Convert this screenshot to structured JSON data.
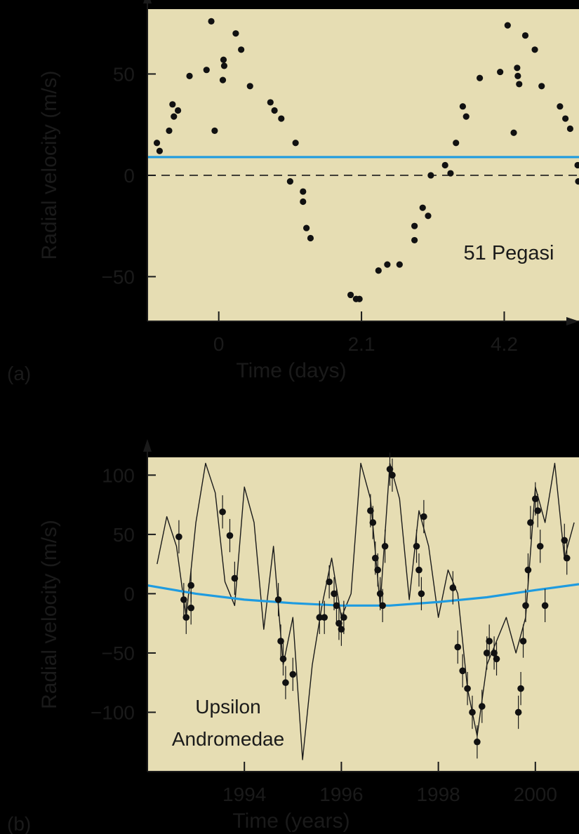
{
  "figure": {
    "colors": {
      "background": "#000000",
      "panel": "#e6ddb3",
      "axis": "#1a1a1a",
      "blue": "#1e9be0",
      "point": "#111111"
    }
  },
  "chart_data": [
    {
      "panel_label": "(a)",
      "type": "scatter",
      "xlabel": "Time (days)",
      "ylabel": "Radial velocity (m/s)",
      "annotation": "51 Pegasi",
      "x_ticks": [
        0,
        2.1,
        4.2
      ],
      "x_tick_labels": [
        "0",
        "2.1",
        "4.2"
      ],
      "y_ticks": [
        50,
        0,
        -50
      ],
      "y_tick_labels": [
        "50",
        "0",
        "−50"
      ],
      "xlim": [
        -1.05,
        5.3
      ],
      "ylim": [
        -72,
        82
      ],
      "reference_lines": [
        {
          "name": "systemic",
          "y": 9,
          "style": "solid",
          "color": "#1e9be0"
        },
        {
          "name": "zero",
          "y": 0,
          "style": "dashed",
          "color": "#1a1a1a"
        }
      ],
      "points": [
        [
          -0.91,
          16
        ],
        [
          -0.87,
          12
        ],
        [
          -0.73,
          22
        ],
        [
          -0.68,
          35
        ],
        [
          -0.66,
          29
        ],
        [
          -0.6,
          32
        ],
        [
          -0.43,
          49
        ],
        [
          -0.18,
          52
        ],
        [
          -0.06,
          22
        ],
        [
          -0.11,
          76
        ],
        [
          0.07,
          57
        ],
        [
          0.08,
          54
        ],
        [
          0.06,
          47
        ],
        [
          0.25,
          70
        ],
        [
          0.33,
          62
        ],
        [
          0.46,
          44
        ],
        [
          0.76,
          36
        ],
        [
          0.82,
          32
        ],
        [
          0.92,
          28
        ],
        [
          1.13,
          16
        ],
        [
          1.05,
          -3
        ],
        [
          1.24,
          -8
        ],
        [
          1.24,
          -13
        ],
        [
          1.29,
          -26
        ],
        [
          1.35,
          -31
        ],
        [
          1.94,
          -59
        ],
        [
          2.02,
          -61
        ],
        [
          2.07,
          -61
        ],
        [
          2.35,
          -47
        ],
        [
          2.48,
          -44
        ],
        [
          2.66,
          -44
        ],
        [
          2.88,
          -25
        ],
        [
          2.88,
          -32
        ],
        [
          3.0,
          -16
        ],
        [
          3.08,
          -20
        ],
        [
          3.12,
          0
        ],
        [
          3.33,
          5
        ],
        [
          3.41,
          1
        ],
        [
          3.49,
          16
        ],
        [
          3.59,
          34
        ],
        [
          3.64,
          29
        ],
        [
          3.84,
          48
        ],
        [
          4.14,
          51
        ],
        [
          4.25,
          74
        ],
        [
          4.34,
          21
        ],
        [
          4.39,
          53
        ],
        [
          4.42,
          45
        ],
        [
          4.4,
          49
        ],
        [
          4.51,
          69
        ],
        [
          4.65,
          62
        ],
        [
          4.75,
          44
        ],
        [
          5.02,
          34
        ],
        [
          5.1,
          28
        ],
        [
          5.17,
          23
        ],
        [
          5.28,
          5
        ],
        [
          5.29,
          -3
        ]
      ]
    },
    {
      "panel_label": "(b)",
      "type": "line",
      "xlabel": "Time (years)",
      "ylabel": "Radial velocity (m/s)",
      "annotation": [
        "Upsilon",
        "Andromedae"
      ],
      "x_ticks": [
        1994,
        1996,
        1998,
        2000
      ],
      "x_tick_labels": [
        "1994",
        "1996",
        "1998",
        "2000"
      ],
      "y_ticks": [
        100,
        50,
        0,
        -50,
        -100
      ],
      "y_tick_labels": [
        "100",
        "50",
        "0",
        "−50",
        "−100"
      ],
      "xlim": [
        1992.0,
        2000.9
      ],
      "ylim": [
        -150,
        115
      ],
      "series": [
        {
          "style": "thin-black-line",
          "x": [
            1992.2,
            1992.4,
            1992.6,
            1992.8,
            1993.0,
            1993.2,
            1993.4,
            1993.6,
            1993.8,
            1994.0,
            1994.2,
            1994.4,
            1994.6,
            1994.8,
            1995.0,
            1995.2,
            1995.4,
            1995.6,
            1995.8,
            1996.0,
            1996.2,
            1996.4,
            1996.6,
            1996.8,
            1997.0,
            1997.2,
            1997.4,
            1997.6,
            1997.8,
            1998.0,
            1998.2,
            1998.4,
            1998.6,
            1998.8,
            1999.0,
            1999.2,
            1999.4,
            1999.6,
            1999.8,
            2000.0,
            2000.2,
            2000.4,
            2000.6,
            2000.8
          ],
          "y": [
            25,
            65,
            40,
            -20,
            60,
            110,
            85,
            10,
            -10,
            90,
            60,
            -30,
            40,
            -60,
            -20,
            -140,
            -60,
            -10,
            30,
            -20,
            0,
            110,
            80,
            -10,
            110,
            80,
            -5,
            70,
            40,
            -20,
            20,
            0,
            -80,
            -120,
            -60,
            -40,
            -20,
            -50,
            -20,
            90,
            60,
            110,
            30,
            60
          ]
        },
        {
          "style": "blue-line",
          "x": [
            1992.0,
            1993.0,
            1994.0,
            1995.0,
            1996.0,
            1997.0,
            1998.0,
            1999.0,
            2000.0,
            2000.9
          ],
          "y": [
            7,
            0,
            -5,
            -8,
            -10,
            -10,
            -7,
            -3,
            3,
            8
          ]
        }
      ],
      "points": [
        [
          1992.65,
          48
        ],
        [
          1992.75,
          -5
        ],
        [
          1992.8,
          -20
        ],
        [
          1992.9,
          7
        ],
        [
          1992.9,
          -12
        ],
        [
          1993.55,
          69
        ],
        [
          1993.7,
          49
        ],
        [
          1993.8,
          13
        ],
        [
          1994.7,
          -5
        ],
        [
          1994.75,
          -40
        ],
        [
          1994.8,
          -55
        ],
        [
          1994.85,
          -75
        ],
        [
          1995.0,
          -68
        ],
        [
          1995.55,
          -20
        ],
        [
          1995.65,
          -20
        ],
        [
          1995.75,
          10
        ],
        [
          1995.85,
          0
        ],
        [
          1995.9,
          -10
        ],
        [
          1995.95,
          -25
        ],
        [
          1996.0,
          -30
        ],
        [
          1996.05,
          -20
        ],
        [
          1996.6,
          70
        ],
        [
          1996.65,
          60
        ],
        [
          1996.7,
          30
        ],
        [
          1996.75,
          20
        ],
        [
          1996.8,
          0
        ],
        [
          1996.85,
          -10
        ],
        [
          1996.9,
          40
        ],
        [
          1997.0,
          105
        ],
        [
          1997.05,
          100
        ],
        [
          1997.55,
          40
        ],
        [
          1997.6,
          20
        ],
        [
          1997.65,
          0
        ],
        [
          1997.7,
          65
        ],
        [
          1998.3,
          5
        ],
        [
          1998.4,
          -45
        ],
        [
          1998.5,
          -65
        ],
        [
          1998.6,
          -80
        ],
        [
          1998.7,
          -100
        ],
        [
          1998.8,
          -125
        ],
        [
          1998.9,
          -95
        ],
        [
          1999.0,
          -50
        ],
        [
          1999.05,
          -40
        ],
        [
          1999.15,
          -50
        ],
        [
          1999.2,
          -55
        ],
        [
          1999.65,
          -100
        ],
        [
          1999.7,
          -80
        ],
        [
          1999.75,
          -40
        ],
        [
          1999.8,
          -10
        ],
        [
          1999.85,
          20
        ],
        [
          1999.9,
          60
        ],
        [
          2000.0,
          80
        ],
        [
          2000.05,
          70
        ],
        [
          2000.1,
          40
        ],
        [
          2000.2,
          -10
        ],
        [
          2000.6,
          45
        ],
        [
          2000.65,
          30
        ]
      ]
    }
  ]
}
